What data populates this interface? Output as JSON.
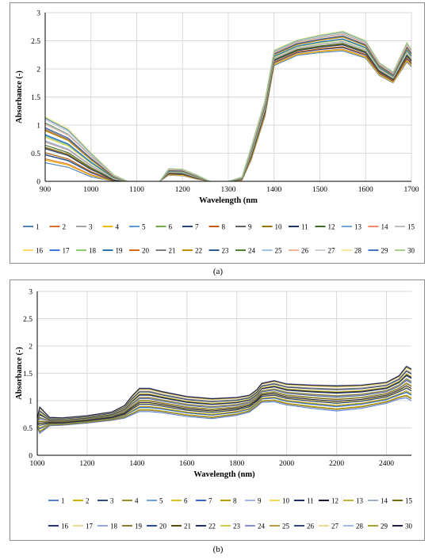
{
  "captions": [
    "(a)",
    "(b)"
  ],
  "chart_data": [
    {
      "type": "line",
      "title": "",
      "xlabel": "Wavelength (nm",
      "ylabel": "Absorbance (-)",
      "xlim": [
        900,
        1700
      ],
      "ylim": [
        0,
        3
      ],
      "xticks": [
        900,
        1000,
        1100,
        1200,
        1300,
        1400,
        1500,
        1600,
        1700
      ],
      "yticks": [
        0,
        0.5,
        1,
        1.5,
        2,
        2.5,
        3
      ],
      "grid": true,
      "legend_position": "bottom",
      "series_names": [
        "1",
        "2",
        "3",
        "4",
        "5",
        "6",
        "7",
        "8",
        "9",
        "10",
        "11",
        "12",
        "13",
        "14",
        "15",
        "16",
        "17",
        "18",
        "19",
        "20",
        "21",
        "22",
        "23",
        "24",
        "25",
        "26",
        "27",
        "28",
        "29",
        "30"
      ],
      "colors": [
        "#4f81bd",
        "#e06c2c",
        "#a5a5a5",
        "#f5b800",
        "#5b9bd5",
        "#70ad47",
        "#264478",
        "#c55a11",
        "#636363",
        "#997300",
        "#1f3864",
        "#43682b",
        "#6fa8dc",
        "#f4886a",
        "#bfbfbf",
        "#ffd966",
        "#3c78d8",
        "#8fce6f",
        "#2e75b6",
        "#d46a1a",
        "#7f7f7f",
        "#c09000",
        "#2f5597",
        "#548235",
        "#9dc3e6",
        "#f8b195",
        "#d0d0d0",
        "#ffe699",
        "#4472c4",
        "#a9d18e"
      ],
      "x": [
        900,
        950,
        1000,
        1050,
        1080,
        1100,
        1150,
        1170,
        1200,
        1230,
        1260,
        1300,
        1330,
        1350,
        1380,
        1400,
        1450,
        1500,
        1550,
        1600,
        1630,
        1660,
        1690,
        1700
      ],
      "series_mean": [
        0.75,
        0.6,
        0.3,
        0.05,
        0,
        0,
        0,
        0.17,
        0.16,
        0.08,
        0,
        0,
        0.05,
        0.5,
        1.3,
        2.2,
        2.38,
        2.45,
        2.5,
        2.35,
        2.0,
        1.85,
        2.3,
        2.2
      ],
      "series_spread": [
        0.42,
        0.35,
        0.22,
        0.07,
        0,
        0,
        0,
        0.06,
        0.06,
        0.04,
        0,
        0,
        0.03,
        0.12,
        0.15,
        0.14,
        0.14,
        0.16,
        0.18,
        0.16,
        0.12,
        0.1,
        0.18,
        0.16
      ]
    },
    {
      "type": "line",
      "title": "",
      "xlabel": "Wavelength (nm)",
      "ylabel": "Absorbance (-)",
      "xlim": [
        1000,
        2500
      ],
      "ylim": [
        0,
        3
      ],
      "xticks": [
        1000,
        1200,
        1400,
        1600,
        1800,
        2000,
        2200,
        2400
      ],
      "yticks": [
        0,
        0.5,
        1,
        1.5,
        2,
        2.5,
        3
      ],
      "grid": true,
      "legend_position": "bottom",
      "series_names": [
        "1",
        "2",
        "3",
        "4",
        "5",
        "6",
        "7",
        "8",
        "9",
        "10",
        "11",
        "12",
        "13",
        "14",
        "15",
        "16",
        "17",
        "18",
        "19",
        "20",
        "21",
        "22",
        "23",
        "24",
        "25",
        "26",
        "27",
        "28",
        "29",
        "30"
      ],
      "colors": [
        "#5b7fd4",
        "#d4b300",
        "#2f4a8c",
        "#9a8a2a",
        "#6f9ee8",
        "#e0c020",
        "#3366cc",
        "#b8a000",
        "#9cb8e8",
        "#eedc5a",
        "#1c2f6b",
        "#1a1a40",
        "#c8b23c",
        "#a0b0d0",
        "#7a6a10",
        "#203880",
        "#e8d890",
        "#90a8e0",
        "#8a7a30",
        "#2850a8",
        "#5a4a10",
        "#18306a",
        "#d8c850",
        "#7f8fd0",
        "#b89a40",
        "#304880",
        "#f0d890",
        "#a8b8e8",
        "#a8a030",
        "#202048"
      ],
      "x": [
        1000,
        1010,
        1050,
        1100,
        1200,
        1300,
        1350,
        1380,
        1410,
        1450,
        1500,
        1600,
        1700,
        1800,
        1850,
        1880,
        1900,
        1950,
        2000,
        2100,
        2200,
        2300,
        2400,
        2450,
        2480,
        2500
      ],
      "series_mean": [
        0.6,
        0.65,
        0.62,
        0.62,
        0.66,
        0.72,
        0.8,
        0.92,
        1.02,
        1.02,
        0.98,
        0.9,
        0.86,
        0.9,
        0.95,
        1.05,
        1.15,
        1.18,
        1.12,
        1.08,
        1.05,
        1.08,
        1.15,
        1.25,
        1.35,
        1.3
      ],
      "series_spread": [
        0.08,
        0.25,
        0.08,
        0.07,
        0.07,
        0.08,
        0.12,
        0.18,
        0.22,
        0.22,
        0.2,
        0.19,
        0.19,
        0.17,
        0.16,
        0.16,
        0.18,
        0.2,
        0.2,
        0.22,
        0.24,
        0.22,
        0.2,
        0.22,
        0.3,
        0.3
      ]
    }
  ]
}
